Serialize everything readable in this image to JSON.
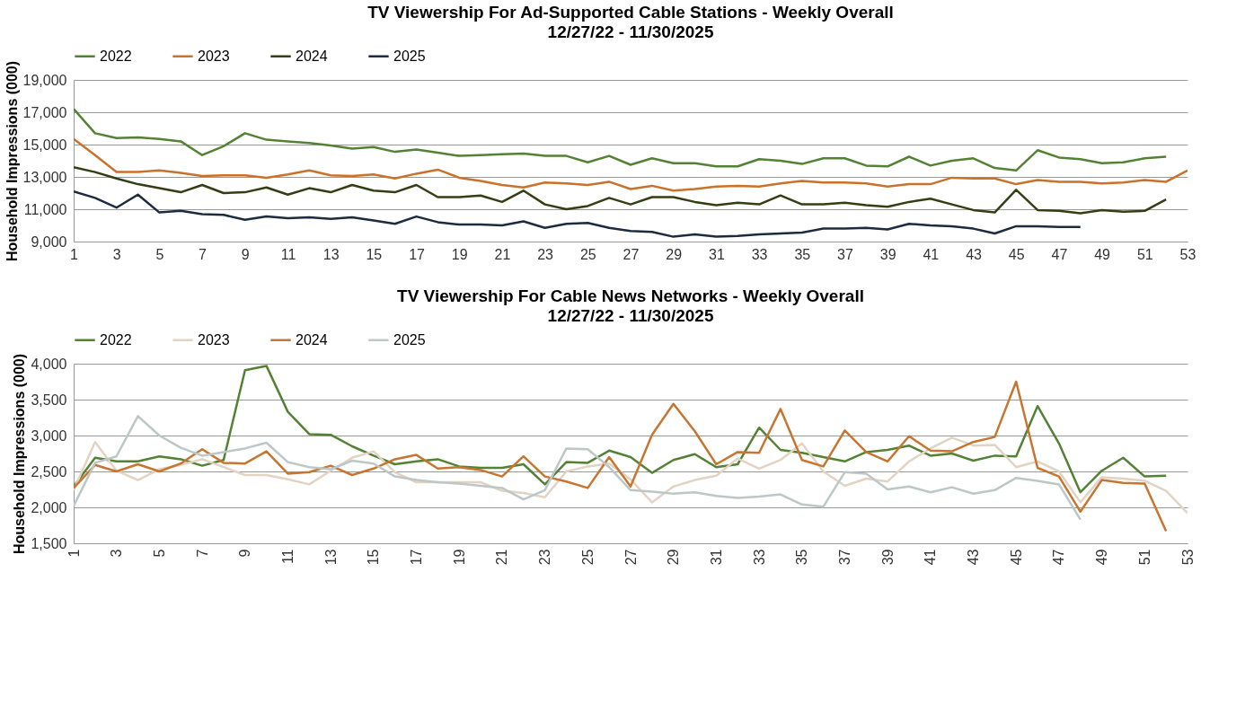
{
  "chart_data": [
    {
      "type": "line",
      "title": "TV Viewership For Ad-Supported Cable Stations  - Weekly Overall",
      "subtitle": "12/27/22 - 11/30/2025",
      "ylabel": "Household Impressions (000)",
      "x": [
        1,
        2,
        3,
        4,
        5,
        6,
        7,
        8,
        9,
        10,
        11,
        12,
        13,
        14,
        15,
        16,
        17,
        18,
        19,
        20,
        21,
        22,
        23,
        24,
        25,
        26,
        27,
        28,
        29,
        30,
        31,
        32,
        33,
        34,
        35,
        36,
        37,
        38,
        39,
        40,
        41,
        42,
        43,
        44,
        45,
        46,
        47,
        48,
        49,
        50,
        51,
        52,
        53
      ],
      "xlim": [
        1,
        53
      ],
      "xticks": [
        1,
        3,
        5,
        7,
        9,
        11,
        13,
        15,
        17,
        19,
        21,
        23,
        25,
        27,
        29,
        31,
        33,
        35,
        37,
        39,
        41,
        43,
        45,
        47,
        49,
        51,
        53
      ],
      "ylim": [
        9000,
        19000
      ],
      "yticks": [
        {
          "value": 9000,
          "label": "9,000"
        },
        {
          "value": 11000,
          "label": "11,000"
        },
        {
          "value": 13000,
          "label": "13,000"
        },
        {
          "value": 15000,
          "label": "15,000"
        },
        {
          "value": 17000,
          "label": "17,000"
        },
        {
          "value": 19000,
          "label": "19,000"
        }
      ],
      "grid": "y",
      "legend": "top",
      "line_style": "solid",
      "series": [
        {
          "name": "2022",
          "color": "#548235",
          "values": [
            17200,
            15700,
            15400,
            15450,
            15350,
            15200,
            14350,
            14900,
            15700,
            15300,
            15200,
            15100,
            14950,
            14750,
            14850,
            14550,
            14700,
            14500,
            14300,
            14350,
            14400,
            14450,
            14300,
            14300,
            13900,
            14300,
            13750,
            14150,
            13850,
            13850,
            13650,
            13650,
            14100,
            14000,
            13800,
            14150,
            14150,
            13700,
            13650,
            14250,
            13700,
            14000,
            14150,
            13550,
            13400,
            14650,
            14200,
            14100,
            13850,
            13900,
            14150,
            14250,
            null
          ]
        },
        {
          "name": "2023",
          "color": "#c8722c",
          "values": [
            15350,
            14350,
            13300,
            13300,
            13400,
            13250,
            13050,
            13100,
            13100,
            12950,
            13150,
            13400,
            13100,
            13050,
            13150,
            12900,
            13200,
            13450,
            12950,
            12750,
            12500,
            12350,
            12650,
            12600,
            12500,
            12700,
            12250,
            12450,
            12150,
            12250,
            12400,
            12450,
            12400,
            12600,
            12750,
            12650,
            12650,
            12600,
            12400,
            12550,
            12550,
            12950,
            12900,
            12900,
            12550,
            12800,
            12700,
            12700,
            12600,
            12650,
            12800,
            12700,
            13400
          ]
        },
        {
          "name": "2024",
          "color": "#333f13",
          "values": [
            13600,
            13300,
            12900,
            12550,
            12300,
            12050,
            12500,
            12000,
            12050,
            12350,
            11900,
            12300,
            12050,
            12500,
            12150,
            12050,
            12500,
            11750,
            11750,
            11850,
            11450,
            12150,
            11300,
            11000,
            11200,
            11700,
            11300,
            11750,
            11750,
            11450,
            11250,
            11400,
            11300,
            11850,
            11300,
            11300,
            11400,
            11250,
            11150,
            11450,
            11650,
            11300,
            10950,
            10800,
            12200,
            10950,
            10900,
            10750,
            10950,
            10850,
            10900,
            11600,
            null
          ]
        },
        {
          "name": "2025",
          "color": "#1c2b3f",
          "values": [
            12100,
            11700,
            11100,
            11900,
            10800,
            10900,
            10700,
            10650,
            10350,
            10550,
            10450,
            10500,
            10400,
            10500,
            10300,
            10100,
            10550,
            10200,
            10050,
            10050,
            10000,
            10250,
            9850,
            10100,
            10150,
            9850,
            9650,
            9600,
            9300,
            9450,
            9300,
            9350,
            9450,
            9500,
            9550,
            9800,
            9800,
            9850,
            9750,
            10100,
            10000,
            9950,
            9800,
            9500,
            9950,
            9950,
            9900,
            9900,
            null,
            null,
            null,
            null,
            null
          ]
        }
      ]
    },
    {
      "type": "line",
      "title": "TV Viewership For Cable News Networks - Weekly Overall",
      "subtitle": "12/27/22 - 11/30/2025",
      "ylabel": "Household Impressions (000)",
      "x": [
        1,
        2,
        3,
        4,
        5,
        6,
        7,
        8,
        9,
        10,
        11,
        12,
        13,
        14,
        15,
        16,
        17,
        18,
        19,
        20,
        21,
        22,
        23,
        24,
        25,
        26,
        27,
        28,
        29,
        30,
        31,
        32,
        33,
        34,
        35,
        36,
        37,
        38,
        39,
        40,
        41,
        42,
        43,
        44,
        45,
        46,
        47,
        48,
        49,
        50,
        51,
        52,
        53
      ],
      "xlim": [
        1,
        53
      ],
      "xticks": [
        1,
        3,
        5,
        7,
        9,
        11,
        13,
        15,
        17,
        19,
        21,
        23,
        25,
        27,
        29,
        31,
        33,
        35,
        37,
        39,
        41,
        43,
        45,
        47,
        49,
        51,
        53
      ],
      "ylim": [
        1500,
        4000
      ],
      "yticks": [
        {
          "value": 1500,
          "label": "1,500"
        },
        {
          "value": 2000,
          "label": "2,000"
        },
        {
          "value": 2500,
          "label": "2,500"
        },
        {
          "value": 3000,
          "label": "3,000"
        },
        {
          "value": 3500,
          "label": "3,500"
        },
        {
          "value": 4000,
          "label": "4,000"
        }
      ],
      "grid": "y",
      "legend": "top",
      "line_style": "solid",
      "series": [
        {
          "name": "2022",
          "color": "#548235",
          "values": [
            2290,
            2690,
            2640,
            2640,
            2710,
            2670,
            2580,
            2660,
            3910,
            3970,
            3330,
            3020,
            3010,
            2850,
            2720,
            2600,
            2640,
            2670,
            2570,
            2550,
            2550,
            2600,
            2320,
            2630,
            2620,
            2790,
            2700,
            2480,
            2660,
            2740,
            2560,
            2600,
            3110,
            2800,
            2760,
            2700,
            2640,
            2770,
            2800,
            2860,
            2720,
            2750,
            2650,
            2720,
            2710,
            3410,
            2890,
            2210,
            2510,
            2690,
            2430,
            2440,
            null
          ]
        },
        {
          "name": "2023",
          "color": "#e2d3c3",
          "values": [
            2240,
            2910,
            2510,
            2380,
            2530,
            2590,
            2670,
            2560,
            2450,
            2450,
            2390,
            2320,
            2510,
            2690,
            2780,
            2490,
            2350,
            2350,
            2350,
            2350,
            2230,
            2200,
            2140,
            2500,
            2570,
            2610,
            2390,
            2070,
            2290,
            2380,
            2440,
            2680,
            2540,
            2660,
            2890,
            2500,
            2300,
            2400,
            2360,
            2640,
            2820,
            2970,
            2860,
            2870,
            2560,
            2640,
            2500,
            2070,
            2420,
            2400,
            2370,
            2230,
            1920
          ]
        },
        {
          "name": "2024",
          "color": "#c77530",
          "values": [
            2270,
            2590,
            2500,
            2600,
            2500,
            2610,
            2810,
            2620,
            2610,
            2780,
            2470,
            2490,
            2580,
            2450,
            2540,
            2670,
            2730,
            2540,
            2560,
            2520,
            2430,
            2710,
            2430,
            2360,
            2270,
            2700,
            2290,
            3010,
            3440,
            3060,
            2600,
            2770,
            2760,
            3370,
            2660,
            2570,
            3070,
            2770,
            2640,
            2990,
            2790,
            2780,
            2910,
            2980,
            3750,
            2550,
            2430,
            1940,
            2380,
            2340,
            2330,
            1670,
            null
          ]
        },
        {
          "name": "2025",
          "color": "#bdc7c7",
          "values": [
            2020,
            2620,
            2710,
            3270,
            3000,
            2830,
            2720,
            2770,
            2820,
            2900,
            2630,
            2560,
            2530,
            2650,
            2610,
            2430,
            2380,
            2350,
            2330,
            2300,
            2270,
            2110,
            2240,
            2820,
            2810,
            2560,
            2240,
            2220,
            2190,
            2210,
            2160,
            2130,
            2150,
            2180,
            2040,
            2010,
            2490,
            2470,
            2250,
            2290,
            2210,
            2280,
            2190,
            2240,
            2410,
            2370,
            2320,
            1830,
            null,
            null,
            null,
            null,
            null
          ]
        }
      ]
    }
  ]
}
